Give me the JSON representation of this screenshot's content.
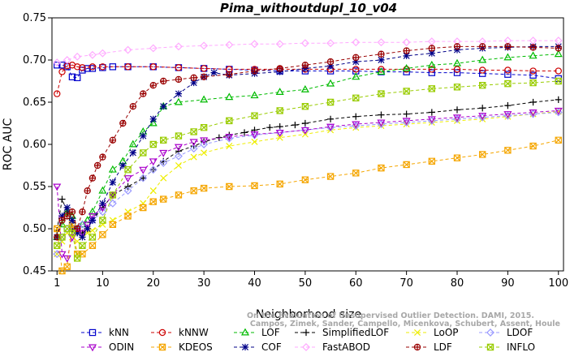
{
  "chart_data": {
    "type": "line",
    "title": "Pima_withoutdupl_10_v04",
    "xlabel": "Neighborhood size",
    "ylabel": "ROC AUC",
    "xlim": [
      0,
      101
    ],
    "ylim": [
      0.45,
      0.75
    ],
    "xticks": [
      1,
      10,
      20,
      30,
      40,
      50,
      60,
      70,
      80,
      90,
      100
    ],
    "yticks": [
      0.45,
      0.5,
      0.55,
      0.6,
      0.65,
      0.7,
      0.75
    ],
    "ytick_labels": [
      "0.45",
      "0.50",
      "0.55",
      "0.60",
      "0.65",
      "0.70",
      "0.75"
    ],
    "grid": false,
    "legend_position": "bottom",
    "watermark": [
      "Campos, Zimek, Sander, Campello, Micenkova, Schubert, Assent, Houle",
      "On the Evaluation of Unsupervised Outlier Detection. DAMI, 2015."
    ],
    "series": [
      {
        "name": "kNN",
        "color": "#0000cc",
        "marker": "square",
        "dash": "4,3",
        "x": [
          1,
          2,
          3,
          4,
          5,
          6,
          7,
          8,
          10,
          12,
          15,
          20,
          25,
          30,
          35,
          40,
          45,
          50,
          55,
          60,
          65,
          70,
          75,
          80,
          85,
          90,
          95,
          100
        ],
        "y": [
          0.694,
          0.694,
          0.692,
          0.68,
          0.679,
          0.688,
          0.69,
          0.69,
          0.691,
          0.692,
          0.692,
          0.692,
          0.691,
          0.69,
          0.689,
          0.688,
          0.687,
          0.687,
          0.687,
          0.687,
          0.686,
          0.686,
          0.685,
          0.685,
          0.684,
          0.683,
          0.682,
          0.678
        ]
      },
      {
        "name": "kNNW",
        "color": "#cc0000",
        "marker": "circle",
        "dash": "4,3",
        "x": [
          1,
          2,
          3,
          4,
          5,
          6,
          8,
          10,
          15,
          20,
          25,
          30,
          35,
          40,
          45,
          50,
          55,
          60,
          65,
          70,
          75,
          80,
          85,
          90,
          95,
          100
        ],
        "y": [
          0.66,
          0.686,
          0.693,
          0.694,
          0.692,
          0.691,
          0.692,
          0.692,
          0.692,
          0.692,
          0.691,
          0.69,
          0.689,
          0.689,
          0.689,
          0.689,
          0.689,
          0.689,
          0.689,
          0.689,
          0.689,
          0.689,
          0.688,
          0.688,
          0.687,
          0.687
        ]
      },
      {
        "name": "LOF",
        "color": "#00bb00",
        "marker": "triangle-up",
        "dash": "4,3",
        "x": [
          1,
          2,
          3,
          4,
          5,
          6,
          7,
          8,
          10,
          12,
          14,
          16,
          18,
          20,
          22,
          25,
          30,
          35,
          40,
          45,
          50,
          55,
          60,
          65,
          70,
          75,
          80,
          85,
          90,
          95,
          100
        ],
        "y": [
          0.49,
          0.505,
          0.52,
          0.515,
          0.5,
          0.505,
          0.51,
          0.52,
          0.545,
          0.57,
          0.58,
          0.6,
          0.615,
          0.625,
          0.645,
          0.65,
          0.653,
          0.656,
          0.658,
          0.662,
          0.665,
          0.672,
          0.68,
          0.686,
          0.69,
          0.694,
          0.696,
          0.7,
          0.703,
          0.705,
          0.707
        ]
      },
      {
        "name": "SimplifiedLOF",
        "color": "#000000",
        "marker": "plus",
        "dash": "4,3",
        "x": [
          1,
          2,
          3,
          4,
          5,
          6,
          7,
          8,
          10,
          12,
          15,
          18,
          20,
          22,
          25,
          28,
          30,
          33,
          35,
          38,
          40,
          43,
          45,
          48,
          50,
          55,
          60,
          65,
          70,
          75,
          80,
          85,
          90,
          95,
          100
        ],
        "y": [
          0.498,
          0.535,
          0.52,
          0.5,
          0.495,
          0.495,
          0.5,
          0.51,
          0.525,
          0.54,
          0.55,
          0.56,
          0.57,
          0.58,
          0.592,
          0.598,
          0.603,
          0.608,
          0.611,
          0.614,
          0.617,
          0.62,
          0.621,
          0.623,
          0.625,
          0.63,
          0.633,
          0.635,
          0.636,
          0.638,
          0.641,
          0.643,
          0.646,
          0.65,
          0.653
        ]
      },
      {
        "name": "LoOP",
        "color": "#eeee00",
        "marker": "x",
        "dash": "4,3",
        "x": [
          1,
          2,
          3,
          4,
          5,
          6,
          7,
          8,
          10,
          12,
          15,
          18,
          20,
          22,
          25,
          28,
          30,
          35,
          40,
          45,
          50,
          55,
          60,
          65,
          70,
          75,
          80,
          85,
          90,
          95,
          100
        ],
        "y": [
          0.47,
          0.485,
          0.495,
          0.49,
          0.485,
          0.49,
          0.495,
          0.498,
          0.505,
          0.51,
          0.52,
          0.53,
          0.545,
          0.56,
          0.575,
          0.585,
          0.59,
          0.598,
          0.603,
          0.608,
          0.612,
          0.617,
          0.62,
          0.622,
          0.624,
          0.626,
          0.628,
          0.63,
          0.633,
          0.636,
          0.639
        ]
      },
      {
        "name": "LDOF",
        "color": "#9999ff",
        "marker": "diamond",
        "dash": "4,3",
        "x": [
          1,
          2,
          3,
          4,
          5,
          6,
          8,
          10,
          12,
          15,
          18,
          20,
          22,
          25,
          28,
          30,
          35,
          40,
          45,
          50,
          55,
          60,
          65,
          70,
          75,
          80,
          85,
          90,
          95,
          100
        ],
        "y": [
          0.47,
          0.49,
          0.5,
          0.505,
          0.5,
          0.505,
          0.51,
          0.52,
          0.53,
          0.545,
          0.56,
          0.57,
          0.578,
          0.586,
          0.595,
          0.6,
          0.607,
          0.611,
          0.614,
          0.617,
          0.62,
          0.622,
          0.624,
          0.626,
          0.628,
          0.63,
          0.632,
          0.634,
          0.636,
          0.638
        ]
      },
      {
        "name": "ODIN",
        "color": "#aa00cc",
        "marker": "triangle-down",
        "dash": "4,3",
        "x": [
          1,
          2,
          3,
          4,
          5,
          6,
          7,
          8,
          10,
          12,
          15,
          18,
          20,
          22,
          25,
          28,
          30,
          35,
          40,
          45,
          50,
          55,
          60,
          65,
          70,
          75,
          80,
          85,
          90,
          95,
          100
        ],
        "y": [
          0.55,
          0.47,
          0.465,
          0.49,
          0.5,
          0.495,
          0.505,
          0.515,
          0.525,
          0.54,
          0.56,
          0.57,
          0.58,
          0.59,
          0.597,
          0.603,
          0.605,
          0.609,
          0.612,
          0.614,
          0.617,
          0.621,
          0.624,
          0.626,
          0.628,
          0.63,
          0.632,
          0.634,
          0.636,
          0.638,
          0.64
        ]
      },
      {
        "name": "KDEOS",
        "color": "#f5a600",
        "marker": "square-x",
        "dash": "4,3",
        "x": [
          1,
          2,
          3,
          4,
          5,
          6,
          8,
          10,
          12,
          15,
          18,
          20,
          22,
          25,
          28,
          30,
          35,
          40,
          45,
          50,
          55,
          60,
          65,
          70,
          75,
          80,
          85,
          90,
          95,
          100
        ],
        "y": [
          0.5,
          0.45,
          0.455,
          0.505,
          0.47,
          0.47,
          0.48,
          0.493,
          0.505,
          0.515,
          0.525,
          0.532,
          0.535,
          0.54,
          0.545,
          0.548,
          0.55,
          0.551,
          0.553,
          0.558,
          0.562,
          0.566,
          0.572,
          0.576,
          0.58,
          0.584,
          0.588,
          0.593,
          0.598,
          0.605
        ]
      },
      {
        "name": "COF",
        "color": "#000088",
        "marker": "star",
        "dash": "4,3",
        "x": [
          1,
          2,
          3,
          4,
          5,
          6,
          7,
          8,
          10,
          12,
          14,
          16,
          18,
          20,
          22,
          25,
          28,
          30,
          32,
          35,
          40,
          45,
          50,
          55,
          60,
          65,
          70,
          75,
          80,
          85,
          90,
          95,
          100
        ],
        "y": [
          0.49,
          0.515,
          0.525,
          0.51,
          0.495,
          0.49,
          0.5,
          0.51,
          0.53,
          0.555,
          0.575,
          0.59,
          0.61,
          0.63,
          0.645,
          0.66,
          0.673,
          0.68,
          0.685,
          0.682,
          0.684,
          0.686,
          0.69,
          0.693,
          0.698,
          0.7,
          0.705,
          0.708,
          0.712,
          0.714,
          0.715,
          0.716,
          0.716
        ]
      },
      {
        "name": "FastABOD",
        "color": "#ffaaff",
        "marker": "diamond",
        "dash": "4,3",
        "x": [
          1,
          3,
          5,
          8,
          10,
          15,
          20,
          25,
          30,
          35,
          40,
          45,
          50,
          55,
          60,
          65,
          70,
          75,
          80,
          85,
          90,
          95,
          100
        ],
        "y": [
          0.697,
          0.7,
          0.704,
          0.706,
          0.708,
          0.712,
          0.714,
          0.716,
          0.717,
          0.718,
          0.719,
          0.719,
          0.72,
          0.72,
          0.721,
          0.721,
          0.721,
          0.722,
          0.722,
          0.722,
          0.723,
          0.723,
          0.723
        ]
      },
      {
        "name": "LDF",
        "color": "#990000",
        "marker": "circle-plus",
        "dash": "4,3",
        "x": [
          1,
          2,
          3,
          4,
          5,
          6,
          7,
          8,
          9,
          10,
          12,
          14,
          16,
          18,
          20,
          22,
          25,
          28,
          30,
          35,
          40,
          45,
          50,
          55,
          60,
          65,
          70,
          75,
          80,
          85,
          90,
          95,
          100
        ],
        "y": [
          0.49,
          0.51,
          0.515,
          0.52,
          0.5,
          0.52,
          0.545,
          0.56,
          0.575,
          0.585,
          0.605,
          0.625,
          0.645,
          0.66,
          0.67,
          0.675,
          0.677,
          0.679,
          0.68,
          0.683,
          0.687,
          0.69,
          0.694,
          0.698,
          0.703,
          0.707,
          0.711,
          0.714,
          0.716,
          0.716,
          0.716,
          0.715,
          0.714
        ]
      },
      {
        "name": "INFLO",
        "color": "#99cc00",
        "marker": "square-x",
        "dash": "4,3",
        "x": [
          1,
          2,
          3,
          4,
          5,
          6,
          8,
          10,
          12,
          15,
          18,
          20,
          22,
          25,
          28,
          30,
          35,
          40,
          45,
          50,
          55,
          60,
          65,
          70,
          75,
          80,
          85,
          90,
          95,
          100
        ],
        "y": [
          0.48,
          0.49,
          0.5,
          0.495,
          0.465,
          0.48,
          0.49,
          0.51,
          0.54,
          0.57,
          0.59,
          0.6,
          0.605,
          0.61,
          0.615,
          0.62,
          0.628,
          0.634,
          0.64,
          0.645,
          0.65,
          0.655,
          0.66,
          0.663,
          0.666,
          0.668,
          0.67,
          0.672,
          0.673,
          0.675
        ]
      }
    ]
  }
}
